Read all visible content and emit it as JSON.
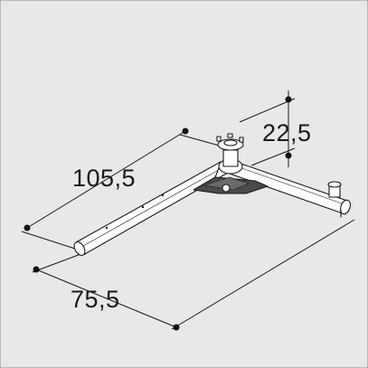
{
  "dimensions": {
    "length_label": "105,5",
    "width_label": "75,5",
    "height_label": "22,5"
  },
  "colors": {
    "background": "#e8e8e8",
    "line": "#1a1a1a",
    "tube_fill": "#ffffff",
    "dot": "#111111"
  }
}
